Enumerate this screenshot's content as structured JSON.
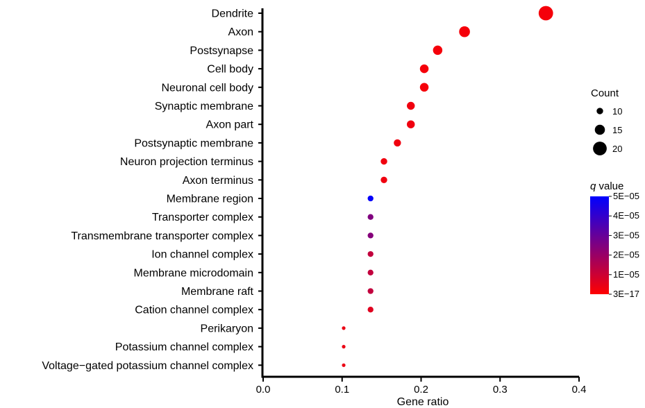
{
  "chart_data": {
    "type": "scatter",
    "title": "",
    "xlabel": "Gene ratio",
    "ylabel": "",
    "xlim": [
      0.0,
      0.4
    ],
    "xticks": [
      "0.0",
      "0.1",
      "0.2",
      "0.3",
      "0.4"
    ],
    "grid": false,
    "legend_position": "right",
    "categories": [
      "Dendrite",
      "Axon",
      "Postsynapse",
      "Cell body",
      "Neuronal cell body",
      "Synaptic membrane",
      "Axon part",
      "Postsynaptic membrane",
      "Neuron projection terminus",
      "Axon terminus",
      "Membrane region",
      "Transporter complex",
      "Transmembrane transporter complex",
      "Ion channel complex",
      "Membrane microdomain",
      "Membrane raft",
      "Cation channel complex",
      "Perikaryon",
      "Potassium channel complex",
      "Voltage−gated potassium channel complex"
    ],
    "points": [
      {
        "category": "Dendrite",
        "gene_ratio": 0.358,
        "count": 21,
        "q_value": 2e-06
      },
      {
        "category": "Axon",
        "gene_ratio": 0.255,
        "count": 16,
        "q_value": 2e-06
      },
      {
        "category": "Postsynapse",
        "gene_ratio": 0.221,
        "count": 14,
        "q_value": 2e-06
      },
      {
        "category": "Cell body",
        "gene_ratio": 0.204,
        "count": 13,
        "q_value": 2e-06
      },
      {
        "category": "Neuronal cell body",
        "gene_ratio": 0.204,
        "count": 13,
        "q_value": 2e-06
      },
      {
        "category": "Synaptic membrane",
        "gene_ratio": 0.187,
        "count": 12,
        "q_value": 3e-06
      },
      {
        "category": "Axon part",
        "gene_ratio": 0.187,
        "count": 12,
        "q_value": 3e-06
      },
      {
        "category": "Postsynaptic membrane",
        "gene_ratio": 0.17,
        "count": 11,
        "q_value": 3e-06
      },
      {
        "category": "Neuron projection terminus",
        "gene_ratio": 0.153,
        "count": 10,
        "q_value": 3e-06
      },
      {
        "category": "Axon terminus",
        "gene_ratio": 0.153,
        "count": 10,
        "q_value": 3e-06
      },
      {
        "category": "Membrane region",
        "gene_ratio": 0.136,
        "count": 9,
        "q_value": 4.9e-05
      },
      {
        "category": "Transporter complex",
        "gene_ratio": 0.136,
        "count": 9,
        "q_value": 2.5e-05
      },
      {
        "category": "Transmembrane transporter complex",
        "gene_ratio": 0.136,
        "count": 9,
        "q_value": 2.4e-05
      },
      {
        "category": "Ion channel complex",
        "gene_ratio": 0.136,
        "count": 9,
        "q_value": 1.2e-05
      },
      {
        "category": "Membrane microdomain",
        "gene_ratio": 0.136,
        "count": 9,
        "q_value": 1.2e-05
      },
      {
        "category": "Membrane raft",
        "gene_ratio": 0.136,
        "count": 9,
        "q_value": 1.2e-05
      },
      {
        "category": "Cation channel complex",
        "gene_ratio": 0.136,
        "count": 9,
        "q_value": 6e-06
      },
      {
        "category": "Perikaryon",
        "gene_ratio": 0.102,
        "count": 6,
        "q_value": 4e-06
      },
      {
        "category": "Potassium channel complex",
        "gene_ratio": 0.102,
        "count": 6,
        "q_value": 4e-06
      },
      {
        "category": "Voltage−gated potassium channel complex",
        "gene_ratio": 0.102,
        "count": 6,
        "q_value": 4e-06
      }
    ],
    "size_legend": {
      "title": "Count",
      "values": [
        10,
        15,
        20
      ],
      "labels": [
        "10",
        "15",
        "20"
      ]
    },
    "color_legend": {
      "title_italic": "q",
      "title_rest": " value",
      "low_color": "#ff0000",
      "high_color": "#0000ff",
      "min": 3e-17,
      "max": 5e-05,
      "tick_values": [
        3e-17,
        1e-05,
        2e-05,
        3e-05,
        4e-05,
        5e-05
      ],
      "tick_labels": [
        "3E−17",
        "1E−05",
        "2E−05",
        "3E−05",
        "4E−05",
        "5E−05"
      ]
    }
  }
}
